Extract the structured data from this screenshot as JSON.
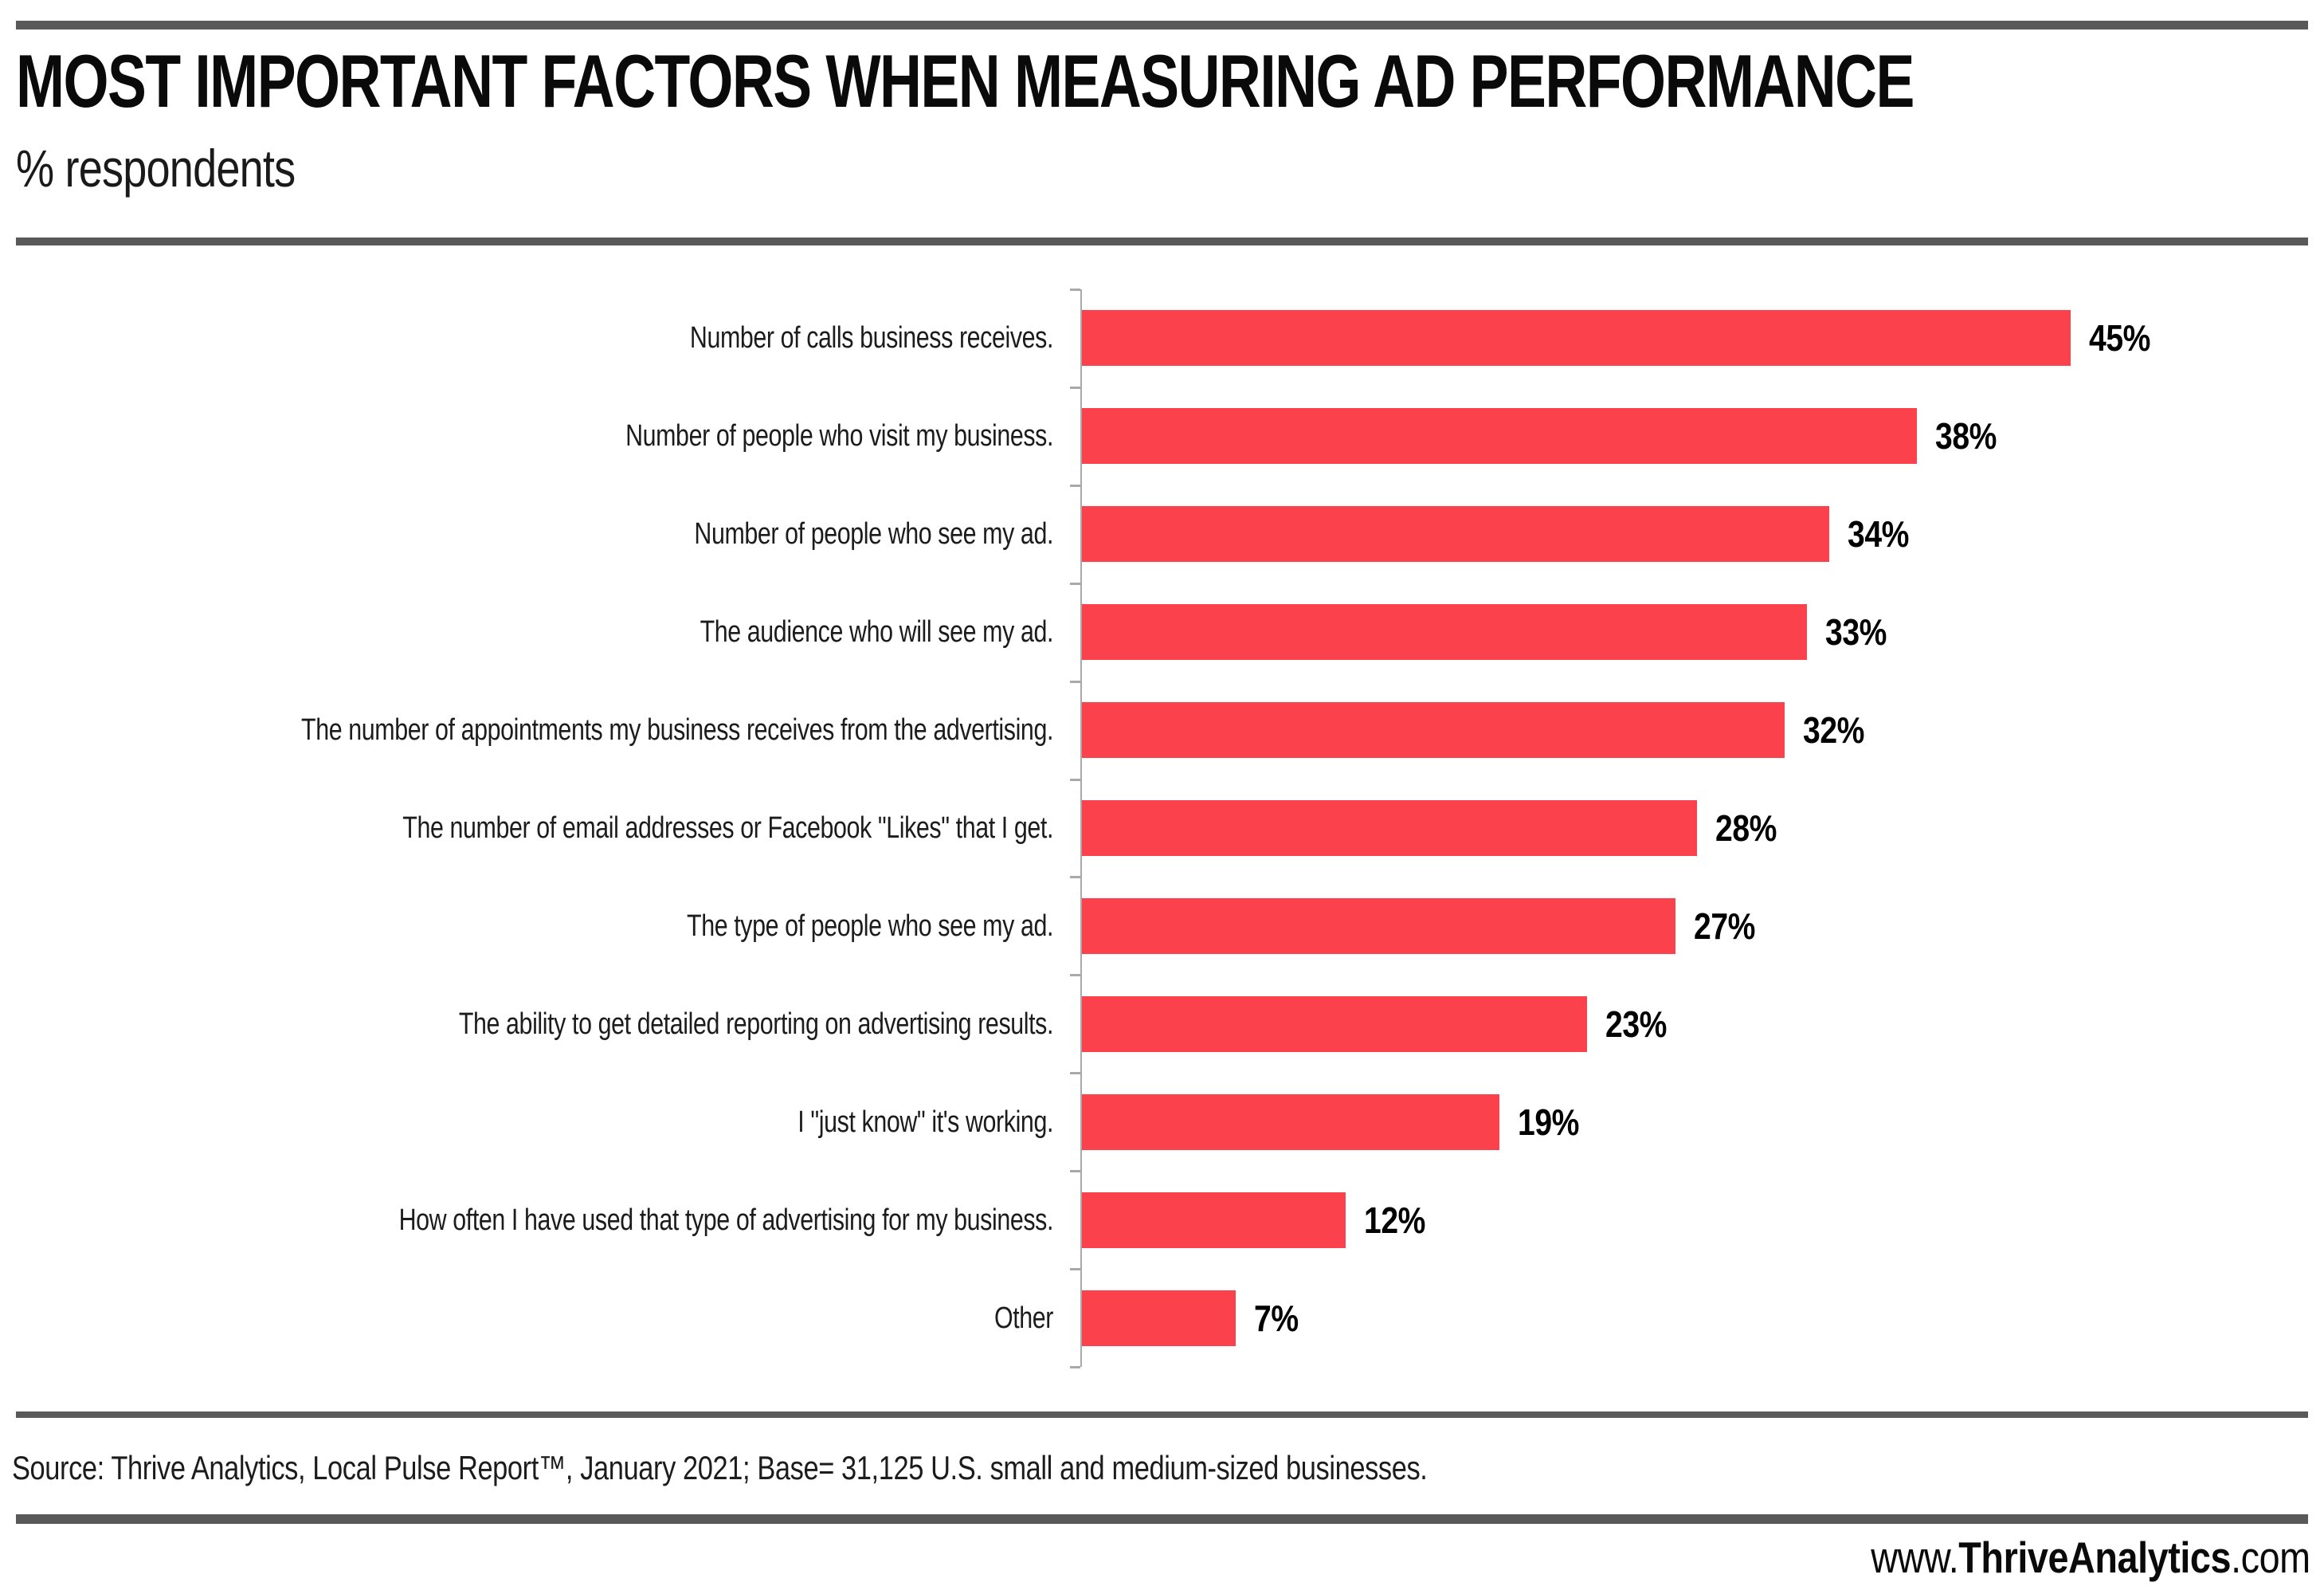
{
  "header": {
    "title": "MOST IMPORTANT FACTORS WHEN MEASURING AD PERFORMANCE",
    "subtitle": "% respondents"
  },
  "chart_data": {
    "type": "bar",
    "orientation": "horizontal",
    "title": "MOST IMPORTANT FACTORS WHEN MEASURING AD PERFORMANCE",
    "subtitle": "% respondents",
    "categories": [
      "Number of calls business receives.",
      "Number of people who visit my business.",
      "Number of people who see my ad.",
      "The audience who will see my ad.",
      "The number of appointments my business receives from the advertising.",
      "The number of email addresses or Facebook \"Likes\" that I get.",
      "The type of people who see my ad.",
      "The ability to get detailed reporting on advertising results.",
      "I \"just know\" it's working.",
      "How often I have used that type of advertising for my business.",
      "Other"
    ],
    "values": [
      45,
      38,
      34,
      33,
      32,
      28,
      27,
      23,
      19,
      12,
      7
    ],
    "value_labels": [
      "45%",
      "38%",
      "34%",
      "33%",
      "32%",
      "28%",
      "27%",
      "23%",
      "19%",
      "12%",
      "7%"
    ],
    "value_suffix": "%",
    "xlim": [
      0,
      45
    ],
    "grid": false,
    "legend": false,
    "bar_color": "#fb424c"
  },
  "footer": {
    "source": "Source: Thrive Analytics, Local Pulse Report™, January 2021; Base= 31,125 U.S. small and medium-sized businesses.",
    "website": {
      "prefix": "www.",
      "name": "ThriveAnalytics",
      "suffix": ".com"
    }
  },
  "colors": {
    "bar_red": "#fb424c",
    "divider_gray": "#595959",
    "axis_gray": "#a9a9a9",
    "text_black": "#0a0a0a"
  }
}
